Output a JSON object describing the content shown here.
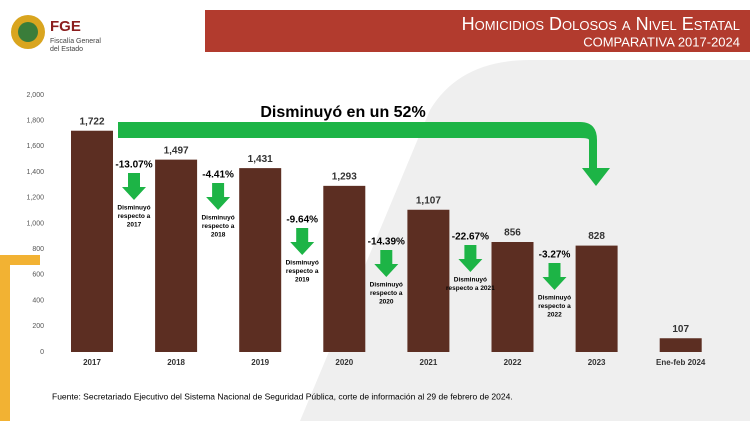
{
  "header": {
    "logo": "FGE",
    "org_lines": [
      "Fiscalía General",
      "del Estado"
    ]
  },
  "chart_data": {
    "type": "bar",
    "title": "Homicidios Dolosos a Nivel Estatal",
    "subtitle": "COMPARATIVA 2017-2024",
    "categories": [
      "2017",
      "2018",
      "2019",
      "2020",
      "2021",
      "2022",
      "2023",
      "Ene-feb 2024"
    ],
    "values": [
      1722,
      1497,
      1431,
      1293,
      1107,
      856,
      828,
      107
    ],
    "value_labels": [
      "1,722",
      "1,497",
      "1,431",
      "1,293",
      "1,107",
      "856",
      "828",
      "107"
    ],
    "color": "#5c2e22",
    "ylim": [
      0,
      2000
    ],
    "yticks": [
      0,
      200,
      400,
      600,
      800,
      {
        "value": 1000,
        "label": "1,000"
      },
      {
        "value": 1200,
        "label": "1,200"
      },
      {
        "value": 1400,
        "label": "1,400"
      },
      {
        "value": 1600,
        "label": "1,600"
      },
      {
        "value": 1800,
        "label": "1,800"
      },
      {
        "value": 2000,
        "label": "2,000"
      }
    ],
    "headline": "Disminuyó en un 52%",
    "annotations": [
      {
        "pct": "-13.07%",
        "lines": [
          "Disminuyó",
          "respecto a",
          "2017"
        ]
      },
      {
        "pct": "-4.41%",
        "lines": [
          "Disminuyó",
          "respecto a",
          "2018"
        ]
      },
      {
        "pct": "-9.64%",
        "lines": [
          "Disminuyó",
          "respecto a",
          "2019"
        ]
      },
      {
        "pct": "-14.39%",
        "lines": [
          "Disminuyó",
          "respecto a",
          "2020"
        ]
      },
      {
        "pct": "-22.67%",
        "lines": [
          "Disminuyó",
          "respecto a 2021"
        ]
      },
      {
        "pct": "-3.27%",
        "lines": [
          "Disminuyó",
          "respecto a",
          "2022"
        ]
      }
    ],
    "source": "Fuente: Secretariado Ejecutivo del Sistema Nacional de Seguridad Pública, corte de información al 29 de febrero de 2024."
  }
}
